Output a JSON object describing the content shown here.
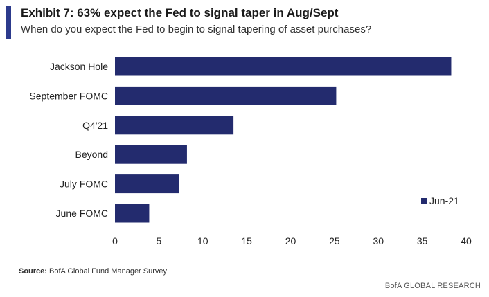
{
  "header": {
    "title": "Exhibit 7: 63% expect the Fed to signal taper in Aug/Sept",
    "subtitle": "When do you expect the Fed to begin to signal tapering of asset purchases?"
  },
  "footer": {
    "source_label": "Source:",
    "source_text": "BofA Global Fund Manager Survey",
    "brand": "BofA GLOBAL RESEARCH"
  },
  "colors": {
    "bar": "#232b6e",
    "accent": "#2c3a8c",
    "grid": "#dcdcdc"
  },
  "chart_data": {
    "type": "bar",
    "orientation": "horizontal",
    "categories": [
      "Jackson Hole",
      "September FOMC",
      "Q4'21",
      "Beyond",
      "July FOMC",
      "June FOMC"
    ],
    "series": [
      {
        "name": "Jun-21",
        "values": [
          38.3,
          25.2,
          13.5,
          8.2,
          7.3,
          3.9
        ]
      }
    ],
    "xlim": [
      0,
      40
    ],
    "xticks": [
      0,
      5,
      10,
      15,
      20,
      25,
      30,
      35,
      40
    ],
    "grid": false,
    "legend_position": "right"
  }
}
